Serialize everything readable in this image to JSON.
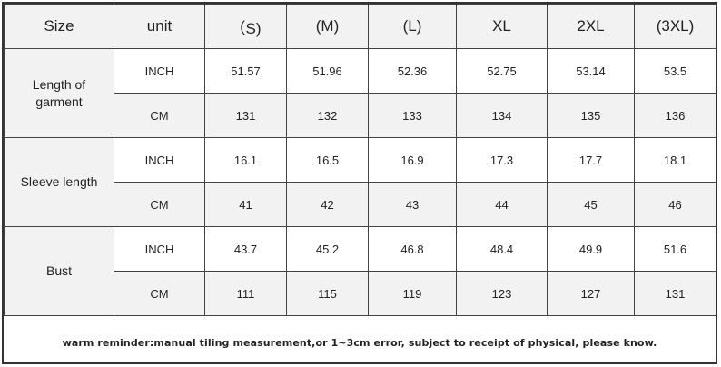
{
  "headers": [
    "Size",
    "unit",
    "（S)",
    "(M)",
    "(L)",
    "XL",
    "2XL",
    "(3XL)"
  ],
  "groups": [
    {
      "label_line1": "Length of",
      "label_line2": "garment",
      "inch": {
        "unit": "INCH",
        "values": [
          "51.57",
          "51.96",
          "52.36",
          "52.75",
          "53.14",
          "53.5"
        ]
      },
      "cm": {
        "unit": "CM",
        "values": [
          "131",
          "132",
          "133",
          "134",
          "135",
          "136"
        ]
      }
    },
    {
      "label_line1": "Sleeve length",
      "label_line2": "",
      "inch": {
        "unit": "INCH",
        "values": [
          "16.1",
          "16.5",
          "16.9",
          "17.3",
          "17.7",
          "18.1"
        ]
      },
      "cm": {
        "unit": "CM",
        "values": [
          "41",
          "42",
          "43",
          "44",
          "45",
          "46"
        ]
      }
    },
    {
      "label_line1": "Bust",
      "label_line2": "",
      "inch": {
        "unit": "INCH",
        "values": [
          "43.7",
          "45.2",
          "46.8",
          "48.4",
          "49.9",
          "51.6"
        ]
      },
      "cm": {
        "unit": "CM",
        "values": [
          "111",
          "115",
          "119",
          "123",
          "127",
          "131"
        ]
      }
    }
  ],
  "note": "warm reminder:manual tiling measurement,or 1~3cm error, subject to receipt of physical, please know."
}
